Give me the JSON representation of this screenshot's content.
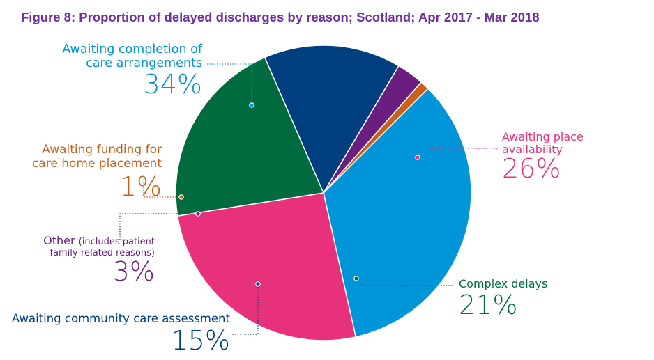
{
  "title": "Figure 8: Proportion of delayed discharges by reason; Scotland; Apr 2017 - Mar 2018",
  "chart_data": {
    "type": "pie",
    "title": "Figure 8: Proportion of delayed discharges by reason; Scotland; Apr 2017 - Mar 2018",
    "slices": [
      {
        "label_lines": [
          "Awaiting completion of",
          "care arrangements"
        ],
        "value_label": "34%",
        "value": 34,
        "color": "#0095d9"
      },
      {
        "label_lines": [
          "Awaiting place",
          "availability"
        ],
        "value_label": "26%",
        "value": 26,
        "color": "#e8317b"
      },
      {
        "label_lines": [
          "Complex delays"
        ],
        "value_label": "21%",
        "value": 21,
        "color": "#006b3f"
      },
      {
        "label_lines": [
          "Awaiting community care assessment"
        ],
        "value_label": "15%",
        "value": 15,
        "color": "#003f7f"
      },
      {
        "label_lines": [
          "Other (includes patient",
          "family-related reasons)"
        ],
        "value_label": "3%",
        "value": 3,
        "color": "#6a1f80"
      },
      {
        "label_lines": [
          "Awaiting funding for",
          "care home placement"
        ],
        "value_label": "1%",
        "value": 1,
        "color": "#c8611d"
      }
    ]
  }
}
